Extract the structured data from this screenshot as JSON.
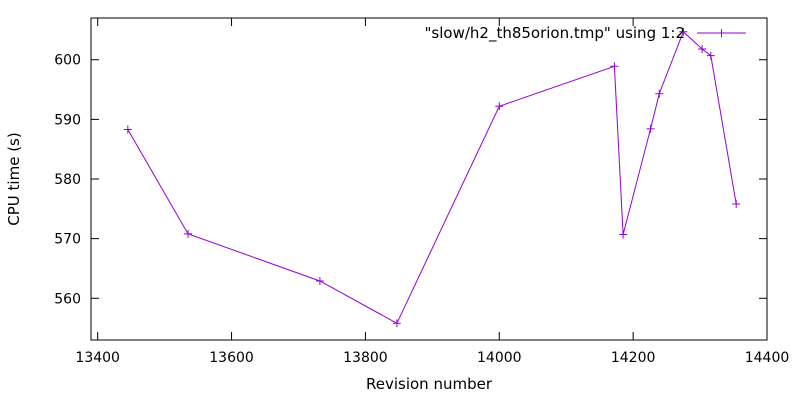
{
  "chart_data": {
    "type": "line",
    "title": "",
    "xlabel": "Revision number",
    "ylabel": "CPU time (s)",
    "xlim": [
      13390,
      14400
    ],
    "ylim": [
      553,
      607
    ],
    "xticks": [
      13400,
      13600,
      13800,
      14000,
      14200,
      14400
    ],
    "yticks": [
      560,
      570,
      580,
      590,
      600
    ],
    "grid": false,
    "legend_position": "top-right",
    "series": [
      {
        "name": "\"slow/h2_th85orion.tmp\" using 1:2",
        "color": "#9400d3",
        "marker": "plus",
        "x": [
          13445,
          13535,
          13732,
          13847,
          14000,
          14172,
          14185,
          14226,
          14239,
          14275,
          14303,
          14316,
          14354
        ],
        "y": [
          588.3,
          570.8,
          562.9,
          555.8,
          592.2,
          598.9,
          570.7,
          588.4,
          594.3,
          604.7,
          601.8,
          600.7,
          575.8
        ]
      }
    ]
  }
}
